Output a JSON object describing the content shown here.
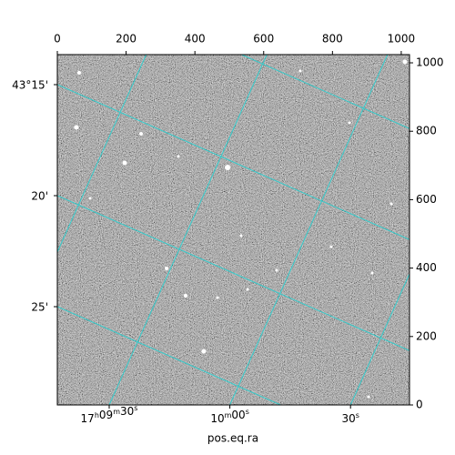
{
  "chart_data": {
    "type": "image",
    "xlabel": "pos.eq.ra",
    "xlim": [
      0,
      1024
    ],
    "xticks": [
      0,
      200,
      400,
      600,
      800,
      1000
    ],
    "ylim": [
      0,
      1024
    ],
    "yticks": [
      0,
      200,
      400,
      600,
      800,
      1000
    ],
    "dec_ticks": [
      {
        "value": 15,
        "label": "43°15'"
      },
      {
        "value": 20,
        "label": "20'"
      },
      {
        "value": 25,
        "label": "25'"
      }
    ],
    "ra_ticks": [
      {
        "value": 30,
        "label": "17h09m30s"
      },
      {
        "value": 60,
        "label": "10m00s"
      },
      {
        "value": 90,
        "label": "30s"
      }
    ],
    "dec_grid": [
      10,
      15,
      20,
      25
    ],
    "ra_grid": [
      0,
      30,
      60,
      90
    ],
    "grid": true,
    "grid_color": "#33cccc"
  }
}
